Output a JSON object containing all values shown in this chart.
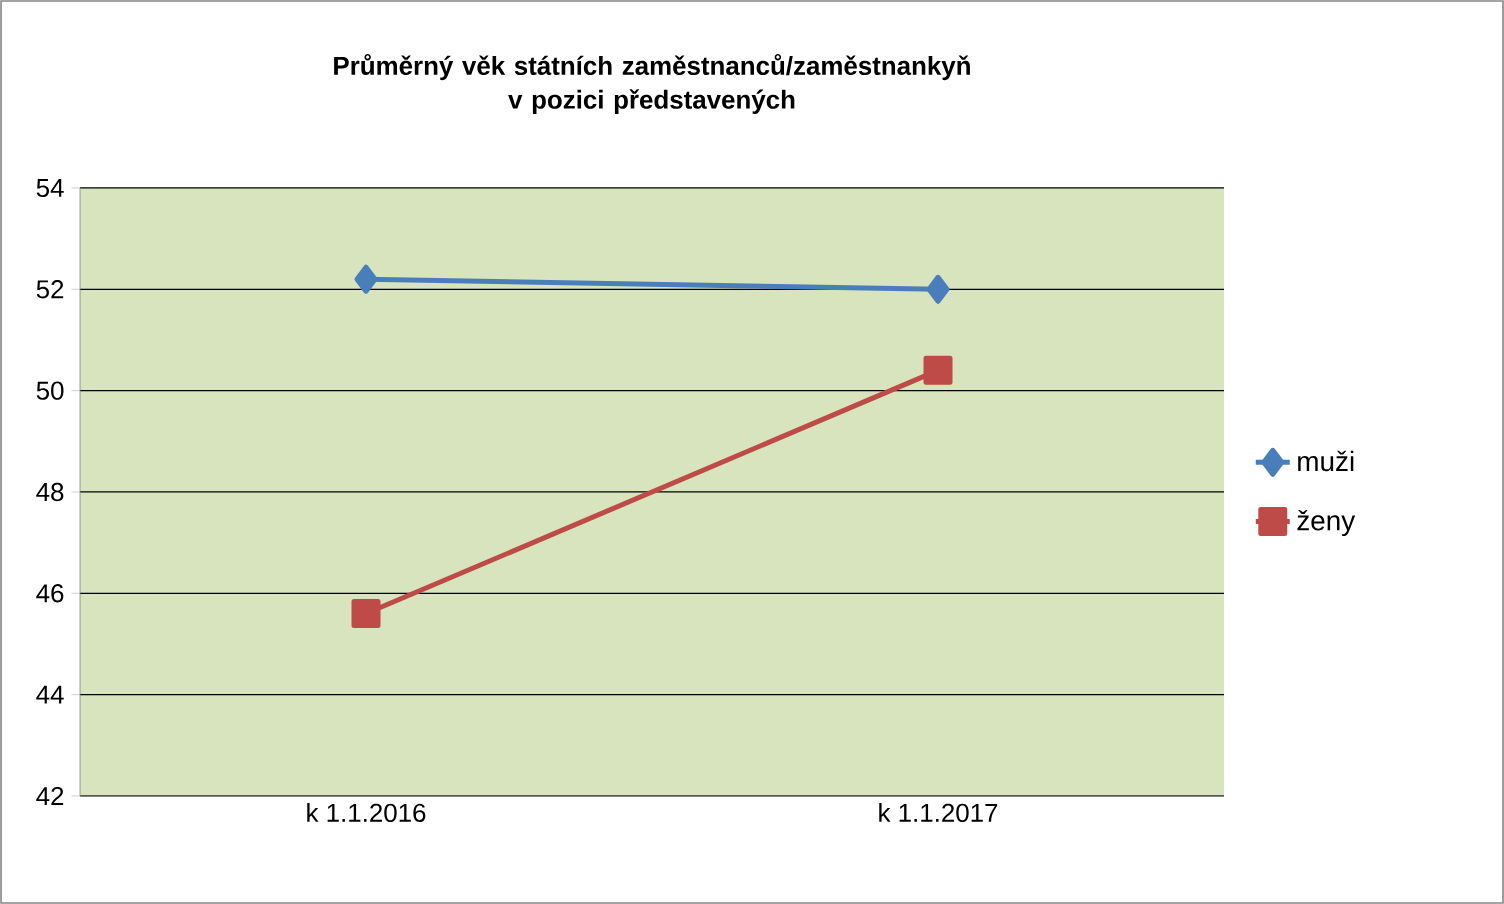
{
  "chart_data": {
    "type": "line",
    "title": "Průměrný věk státních zaměstnanců/zaměstnankyň v pozici představených",
    "categories": [
      "k 1.1.2016",
      "k 1.1.2017"
    ],
    "series": [
      {
        "name": "muži",
        "color": "#4a7ebb",
        "values": [
          52.2,
          52.0
        ],
        "marker": "diamond"
      },
      {
        "name": "ženy",
        "color": "#be4b48",
        "values": [
          45.6,
          50.4
        ],
        "marker": "square"
      }
    ],
    "ylim": [
      42,
      54
    ],
    "yticks": [
      42,
      44,
      46,
      48,
      50,
      52,
      54
    ],
    "grid": "y",
    "legend": "right",
    "line_style": "solid"
  }
}
